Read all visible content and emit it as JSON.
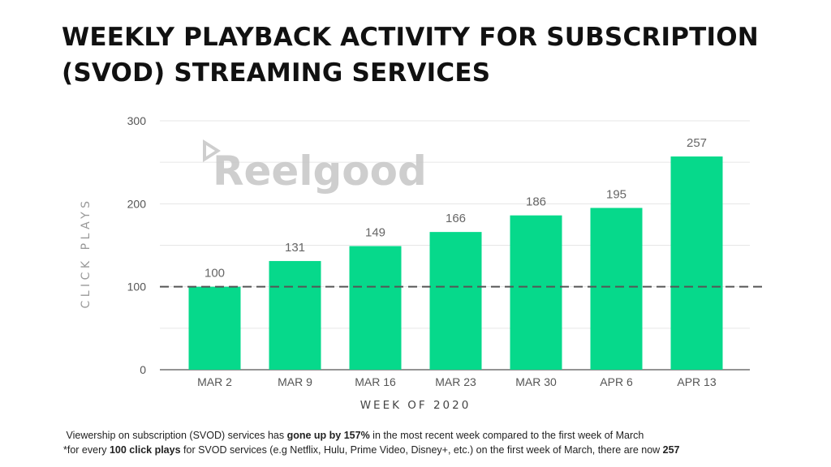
{
  "title_line1": "WEEKLY PLAYBACK ACTIVITY FOR SUBSCRIPTION",
  "title_line2": "(SVOD) STREAMING SERVICES",
  "watermark": "Reelgood",
  "colors": {
    "bar": "#06d98b",
    "gridline": "#e6e6e6",
    "baseline": "#555555",
    "reference_line": "#555555"
  },
  "chart_data": {
    "type": "bar",
    "title": "WEEKLY PLAYBACK ACTIVITY FOR SUBSCRIPTION (SVOD) STREAMING SERVICES",
    "xlabel": "WEEK OF 2020",
    "ylabel": "CLICK PLAYS",
    "categories": [
      "MAR 2",
      "MAR 9",
      "MAR 16",
      "MAR 23",
      "MAR 30",
      "APR 6",
      "APR 13"
    ],
    "values": [
      100,
      131,
      149,
      166,
      186,
      195,
      257
    ],
    "ylim": [
      0,
      300
    ],
    "yticks": [
      0,
      100,
      200,
      300
    ],
    "minor_gridlines": [
      50,
      150,
      250
    ],
    "grid": true,
    "data_labels": true,
    "reference_line": {
      "y": 100,
      "style": "dashed"
    }
  },
  "footnote": {
    "line1_pre": "Viewership on subscription (SVOD) services has ",
    "line1_bold": "gone up by 157%",
    "line1_post": " in the most recent week compared to the first week of March",
    "line2_pre": "*for every ",
    "line2_bold1": "100 click plays",
    "line2_mid": " for SVOD services (e.g Netflix, Hulu, Prime Video, Disney+, etc.) on the first week of March, there are now ",
    "line2_bold2": "257"
  }
}
